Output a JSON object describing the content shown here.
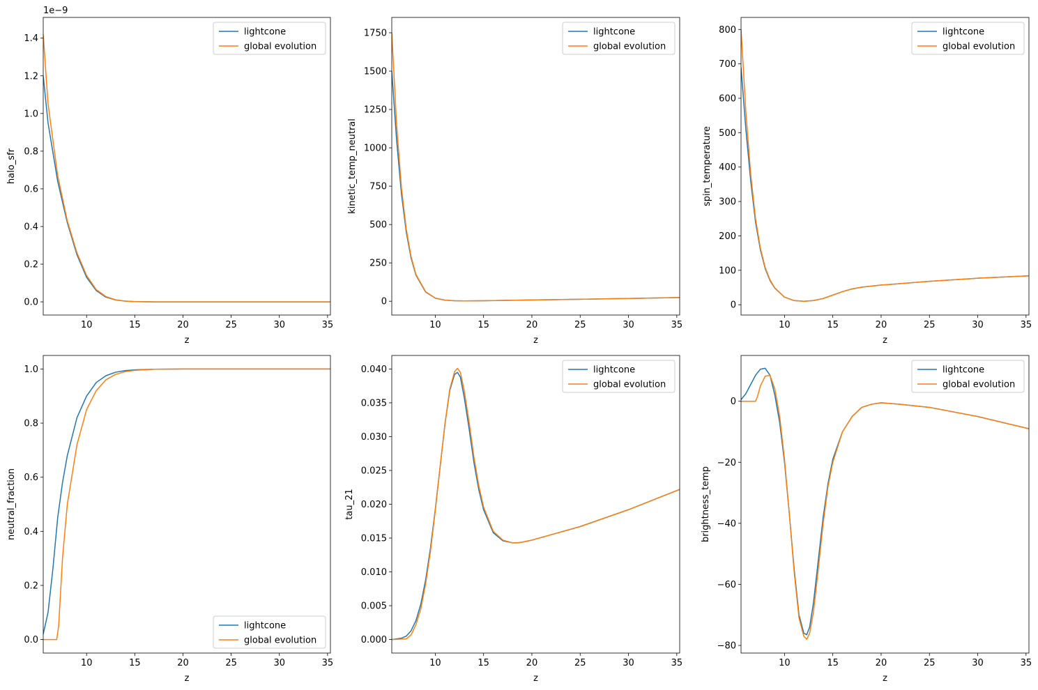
{
  "figure": {
    "background": "#ffffff"
  },
  "colors": {
    "lightcone": "#1f77b4",
    "global": "#ff7f0e"
  },
  "chart_data": [
    {
      "type": "line",
      "xlabel": "z",
      "ylabel": "halo_sfr",
      "xlim": [
        5.5,
        35.3
      ],
      "ylim": [
        -0.07,
        1.51
      ],
      "y_offset_label": "1e−9",
      "xticks": [
        10,
        15,
        20,
        25,
        30,
        35
      ],
      "yticks": [
        0.0,
        0.2,
        0.4,
        0.6,
        0.8,
        1.0,
        1.2,
        1.4
      ],
      "ytick_labels": [
        "0.0",
        "0.2",
        "0.4",
        "0.6",
        "0.8",
        "1.0",
        "1.2",
        "1.4"
      ],
      "legend_loc": "upper right",
      "series": [
        {
          "name": "lightcone",
          "color": "#1f77b4",
          "x": [
            5.5,
            6,
            7,
            8,
            9,
            10,
            11,
            12,
            13,
            14,
            15,
            17,
            20,
            25,
            30,
            35.3
          ],
          "y": [
            1.2,
            0.95,
            0.64,
            0.42,
            0.25,
            0.13,
            0.06,
            0.025,
            0.01,
            0.004,
            0.001,
            0.0,
            0.0,
            0.0,
            0.0,
            0.0
          ]
        },
        {
          "name": "global evolution",
          "color": "#ff7f0e",
          "x": [
            5.5,
            6,
            7,
            8,
            9,
            10,
            11,
            12,
            13,
            14,
            15,
            17,
            20,
            25,
            30,
            35.3
          ],
          "y": [
            1.42,
            1.05,
            0.67,
            0.43,
            0.26,
            0.14,
            0.065,
            0.028,
            0.011,
            0.004,
            0.001,
            0.0,
            0.0,
            0.0,
            0.0,
            0.0
          ]
        }
      ]
    },
    {
      "type": "line",
      "xlabel": "z",
      "ylabel": "kinetic_temp_neutral",
      "xlim": [
        5.5,
        35.3
      ],
      "ylim": [
        -90,
        1850
      ],
      "xticks": [
        10,
        15,
        20,
        25,
        30,
        35
      ],
      "yticks": [
        0,
        250,
        500,
        750,
        1000,
        1250,
        1500,
        1750
      ],
      "ytick_labels": [
        "0",
        "250",
        "500",
        "750",
        "1000",
        "1250",
        "1500",
        "1750"
      ],
      "legend_loc": "upper right",
      "series": [
        {
          "name": "lightcone",
          "color": "#1f77b4",
          "x": [
            5.5,
            6,
            6.5,
            7,
            7.5,
            8,
            9,
            10,
            11,
            12,
            13,
            15,
            20,
            25,
            30,
            35.3
          ],
          "y": [
            1500,
            1050,
            700,
            450,
            280,
            170,
            60,
            20,
            7,
            3,
            2,
            3,
            8,
            13,
            18,
            24
          ]
        },
        {
          "name": "global evolution",
          "color": "#ff7f0e",
          "x": [
            5.5,
            6,
            6.5,
            7,
            7.5,
            8,
            9,
            10,
            11,
            12,
            13,
            15,
            20,
            25,
            30,
            35.3
          ],
          "y": [
            1750,
            1150,
            740,
            470,
            290,
            175,
            62,
            21,
            7,
            3,
            2,
            3,
            8,
            13,
            18,
            24
          ]
        }
      ]
    },
    {
      "type": "line",
      "xlabel": "z",
      "ylabel": "spin_temperature",
      "xlim": [
        5.5,
        35.3
      ],
      "ylim": [
        -30,
        835
      ],
      "xticks": [
        10,
        15,
        20,
        25,
        30,
        35
      ],
      "yticks": [
        0,
        100,
        200,
        300,
        400,
        500,
        600,
        700,
        800
      ],
      "ytick_labels": [
        "0",
        "100",
        "200",
        "300",
        "400",
        "500",
        "600",
        "700",
        "800"
      ],
      "legend_loc": "upper right",
      "series": [
        {
          "name": "lightcone",
          "color": "#1f77b4",
          "x": [
            5.5,
            6,
            6.5,
            7,
            7.5,
            8,
            8.5,
            9,
            10,
            11,
            12,
            13,
            14,
            15,
            16,
            17,
            18,
            20,
            25,
            30,
            35.3
          ],
          "y": [
            690,
            510,
            360,
            240,
            160,
            105,
            70,
            48,
            22,
            12,
            10,
            12,
            18,
            28,
            38,
            46,
            51,
            57,
            68,
            77,
            84
          ]
        },
        {
          "name": "global evolution",
          "color": "#ff7f0e",
          "x": [
            5.5,
            6,
            6.5,
            7,
            7.5,
            8,
            8.5,
            9,
            10,
            11,
            12,
            13,
            14,
            15,
            16,
            17,
            18,
            20,
            25,
            30,
            35.3
          ],
          "y": [
            800,
            560,
            380,
            250,
            165,
            108,
            72,
            49,
            22,
            12,
            10,
            12,
            18,
            28,
            38,
            46,
            51,
            57,
            68,
            77,
            84
          ]
        }
      ]
    },
    {
      "type": "line",
      "xlabel": "z",
      "ylabel": "neutral_fraction",
      "xlim": [
        5.5,
        35.3
      ],
      "ylim": [
        -0.05,
        1.05
      ],
      "xticks": [
        10,
        15,
        20,
        25,
        30,
        35
      ],
      "yticks": [
        0.0,
        0.2,
        0.4,
        0.6,
        0.8,
        1.0
      ],
      "ytick_labels": [
        "0.0",
        "0.2",
        "0.4",
        "0.6",
        "0.8",
        "1.0"
      ],
      "legend_loc": "lower right",
      "series": [
        {
          "name": "lightcone",
          "color": "#1f77b4",
          "x": [
            5.5,
            6,
            6.5,
            7,
            7.5,
            8,
            9,
            10,
            11,
            12,
            13,
            14,
            15,
            17,
            20,
            25,
            30,
            35.3
          ],
          "y": [
            0.02,
            0.1,
            0.26,
            0.45,
            0.58,
            0.68,
            0.82,
            0.9,
            0.95,
            0.975,
            0.988,
            0.994,
            0.997,
            0.999,
            1.0,
            1.0,
            1.0,
            1.0
          ]
        },
        {
          "name": "global evolution",
          "color": "#ff7f0e",
          "x": [
            5.5,
            6,
            6.5,
            6.9,
            7.1,
            7.5,
            8,
            9,
            10,
            11,
            12,
            13,
            14,
            15,
            17,
            20,
            25,
            30,
            35.3
          ],
          "y": [
            0.0,
            0.0,
            0.0,
            0.0,
            0.05,
            0.3,
            0.5,
            0.72,
            0.85,
            0.92,
            0.96,
            0.98,
            0.99,
            0.995,
            0.999,
            1.0,
            1.0,
            1.0,
            1.0
          ]
        }
      ]
    },
    {
      "type": "line",
      "xlabel": "z",
      "ylabel": "tau_21",
      "xlim": [
        5.5,
        35.3
      ],
      "ylim": [
        -0.002,
        0.042
      ],
      "xticks": [
        10,
        15,
        20,
        25,
        30,
        35
      ],
      "yticks": [
        0.0,
        0.005,
        0.01,
        0.015,
        0.02,
        0.025,
        0.03,
        0.035,
        0.04
      ],
      "ytick_labels": [
        "0.000",
        "0.005",
        "0.010",
        "0.015",
        "0.020",
        "0.025",
        "0.030",
        "0.035",
        "0.040"
      ],
      "legend_loc": "upper right",
      "series": [
        {
          "name": "lightcone",
          "color": "#1f77b4",
          "x": [
            5.5,
            6.5,
            7,
            7.5,
            8,
            8.5,
            9,
            9.5,
            10,
            10.5,
            11,
            11.5,
            12,
            12.3,
            12.6,
            13,
            13.5,
            14,
            14.5,
            15,
            16,
            17,
            18,
            18.5,
            19,
            20,
            22,
            25,
            30,
            35.3
          ],
          "y": [
            0.0,
            0.0002,
            0.0005,
            0.0013,
            0.0028,
            0.0052,
            0.0088,
            0.0135,
            0.0192,
            0.0255,
            0.0318,
            0.0368,
            0.0392,
            0.0395,
            0.0388,
            0.0358,
            0.0312,
            0.0262,
            0.0222,
            0.0192,
            0.0158,
            0.0146,
            0.0143,
            0.0143,
            0.0144,
            0.0147,
            0.0155,
            0.0167,
            0.0192,
            0.0222
          ]
        },
        {
          "name": "global evolution",
          "color": "#ff7f0e",
          "x": [
            5.5,
            7,
            7.5,
            8,
            8.5,
            9,
            9.5,
            10,
            10.5,
            11,
            11.5,
            12,
            12.3,
            12.6,
            13,
            13.5,
            14,
            14.5,
            15,
            16,
            17,
            18,
            18.5,
            19,
            20,
            22,
            25,
            30,
            35.3
          ],
          "y": [
            0.0,
            0.0001,
            0.0007,
            0.0022,
            0.0045,
            0.0082,
            0.013,
            0.019,
            0.0255,
            0.0318,
            0.037,
            0.0396,
            0.0401,
            0.0395,
            0.0368,
            0.0322,
            0.027,
            0.0228,
            0.0196,
            0.016,
            0.0147,
            0.0143,
            0.0143,
            0.0144,
            0.0147,
            0.0155,
            0.0167,
            0.0192,
            0.0222
          ]
        }
      ]
    },
    {
      "type": "line",
      "xlabel": "z",
      "ylabel": "brightness_temp",
      "xlim": [
        5.5,
        35.3
      ],
      "ylim": [
        -82.5,
        15
      ],
      "xticks": [
        10,
        15,
        20,
        25,
        30,
        35
      ],
      "yticks": [
        -80,
        -60,
        -40,
        -20,
        0
      ],
      "ytick_labels": [
        "−80",
        "−60",
        "−40",
        "−20",
        "0"
      ],
      "legend_loc": "upper right",
      "series": [
        {
          "name": "lightcone",
          "color": "#1f77b4",
          "x": [
            5.5,
            6,
            6.5,
            7,
            7.5,
            8,
            8.5,
            9,
            9.5,
            10,
            10.5,
            11,
            11.5,
            12,
            12.3,
            12.6,
            13,
            13.5,
            14,
            14.5,
            15,
            16,
            17,
            18,
            19,
            20,
            22,
            25,
            30,
            35.3
          ],
          "y": [
            0.5,
            2.5,
            5.5,
            8.5,
            10.5,
            10.8,
            8.5,
            2,
            -7,
            -20,
            -37,
            -55,
            -70,
            -76,
            -76.5,
            -74,
            -66,
            -52,
            -38,
            -27,
            -19,
            -10,
            -5,
            -2,
            -1,
            -0.5,
            -1,
            -2,
            -5,
            -9
          ]
        },
        {
          "name": "global evolution",
          "color": "#ff7f0e",
          "x": [
            5.5,
            6,
            6.5,
            7,
            7.2,
            7.5,
            8,
            8.5,
            9,
            9.5,
            10,
            10.5,
            11,
            11.5,
            12,
            12.3,
            12.6,
            13,
            13.5,
            14,
            14.5,
            15,
            16,
            17,
            18,
            19,
            20,
            22,
            25,
            30,
            35.3
          ],
          "y": [
            0.0,
            0.0,
            0.0,
            0.0,
            1.5,
            5,
            8.2,
            8.5,
            4,
            -5,
            -19,
            -37,
            -56,
            -71,
            -77,
            -78,
            -76,
            -69,
            -55,
            -40,
            -28,
            -20,
            -10,
            -5,
            -2,
            -1,
            -0.5,
            -1,
            -2,
            -5,
            -9
          ]
        }
      ]
    }
  ]
}
